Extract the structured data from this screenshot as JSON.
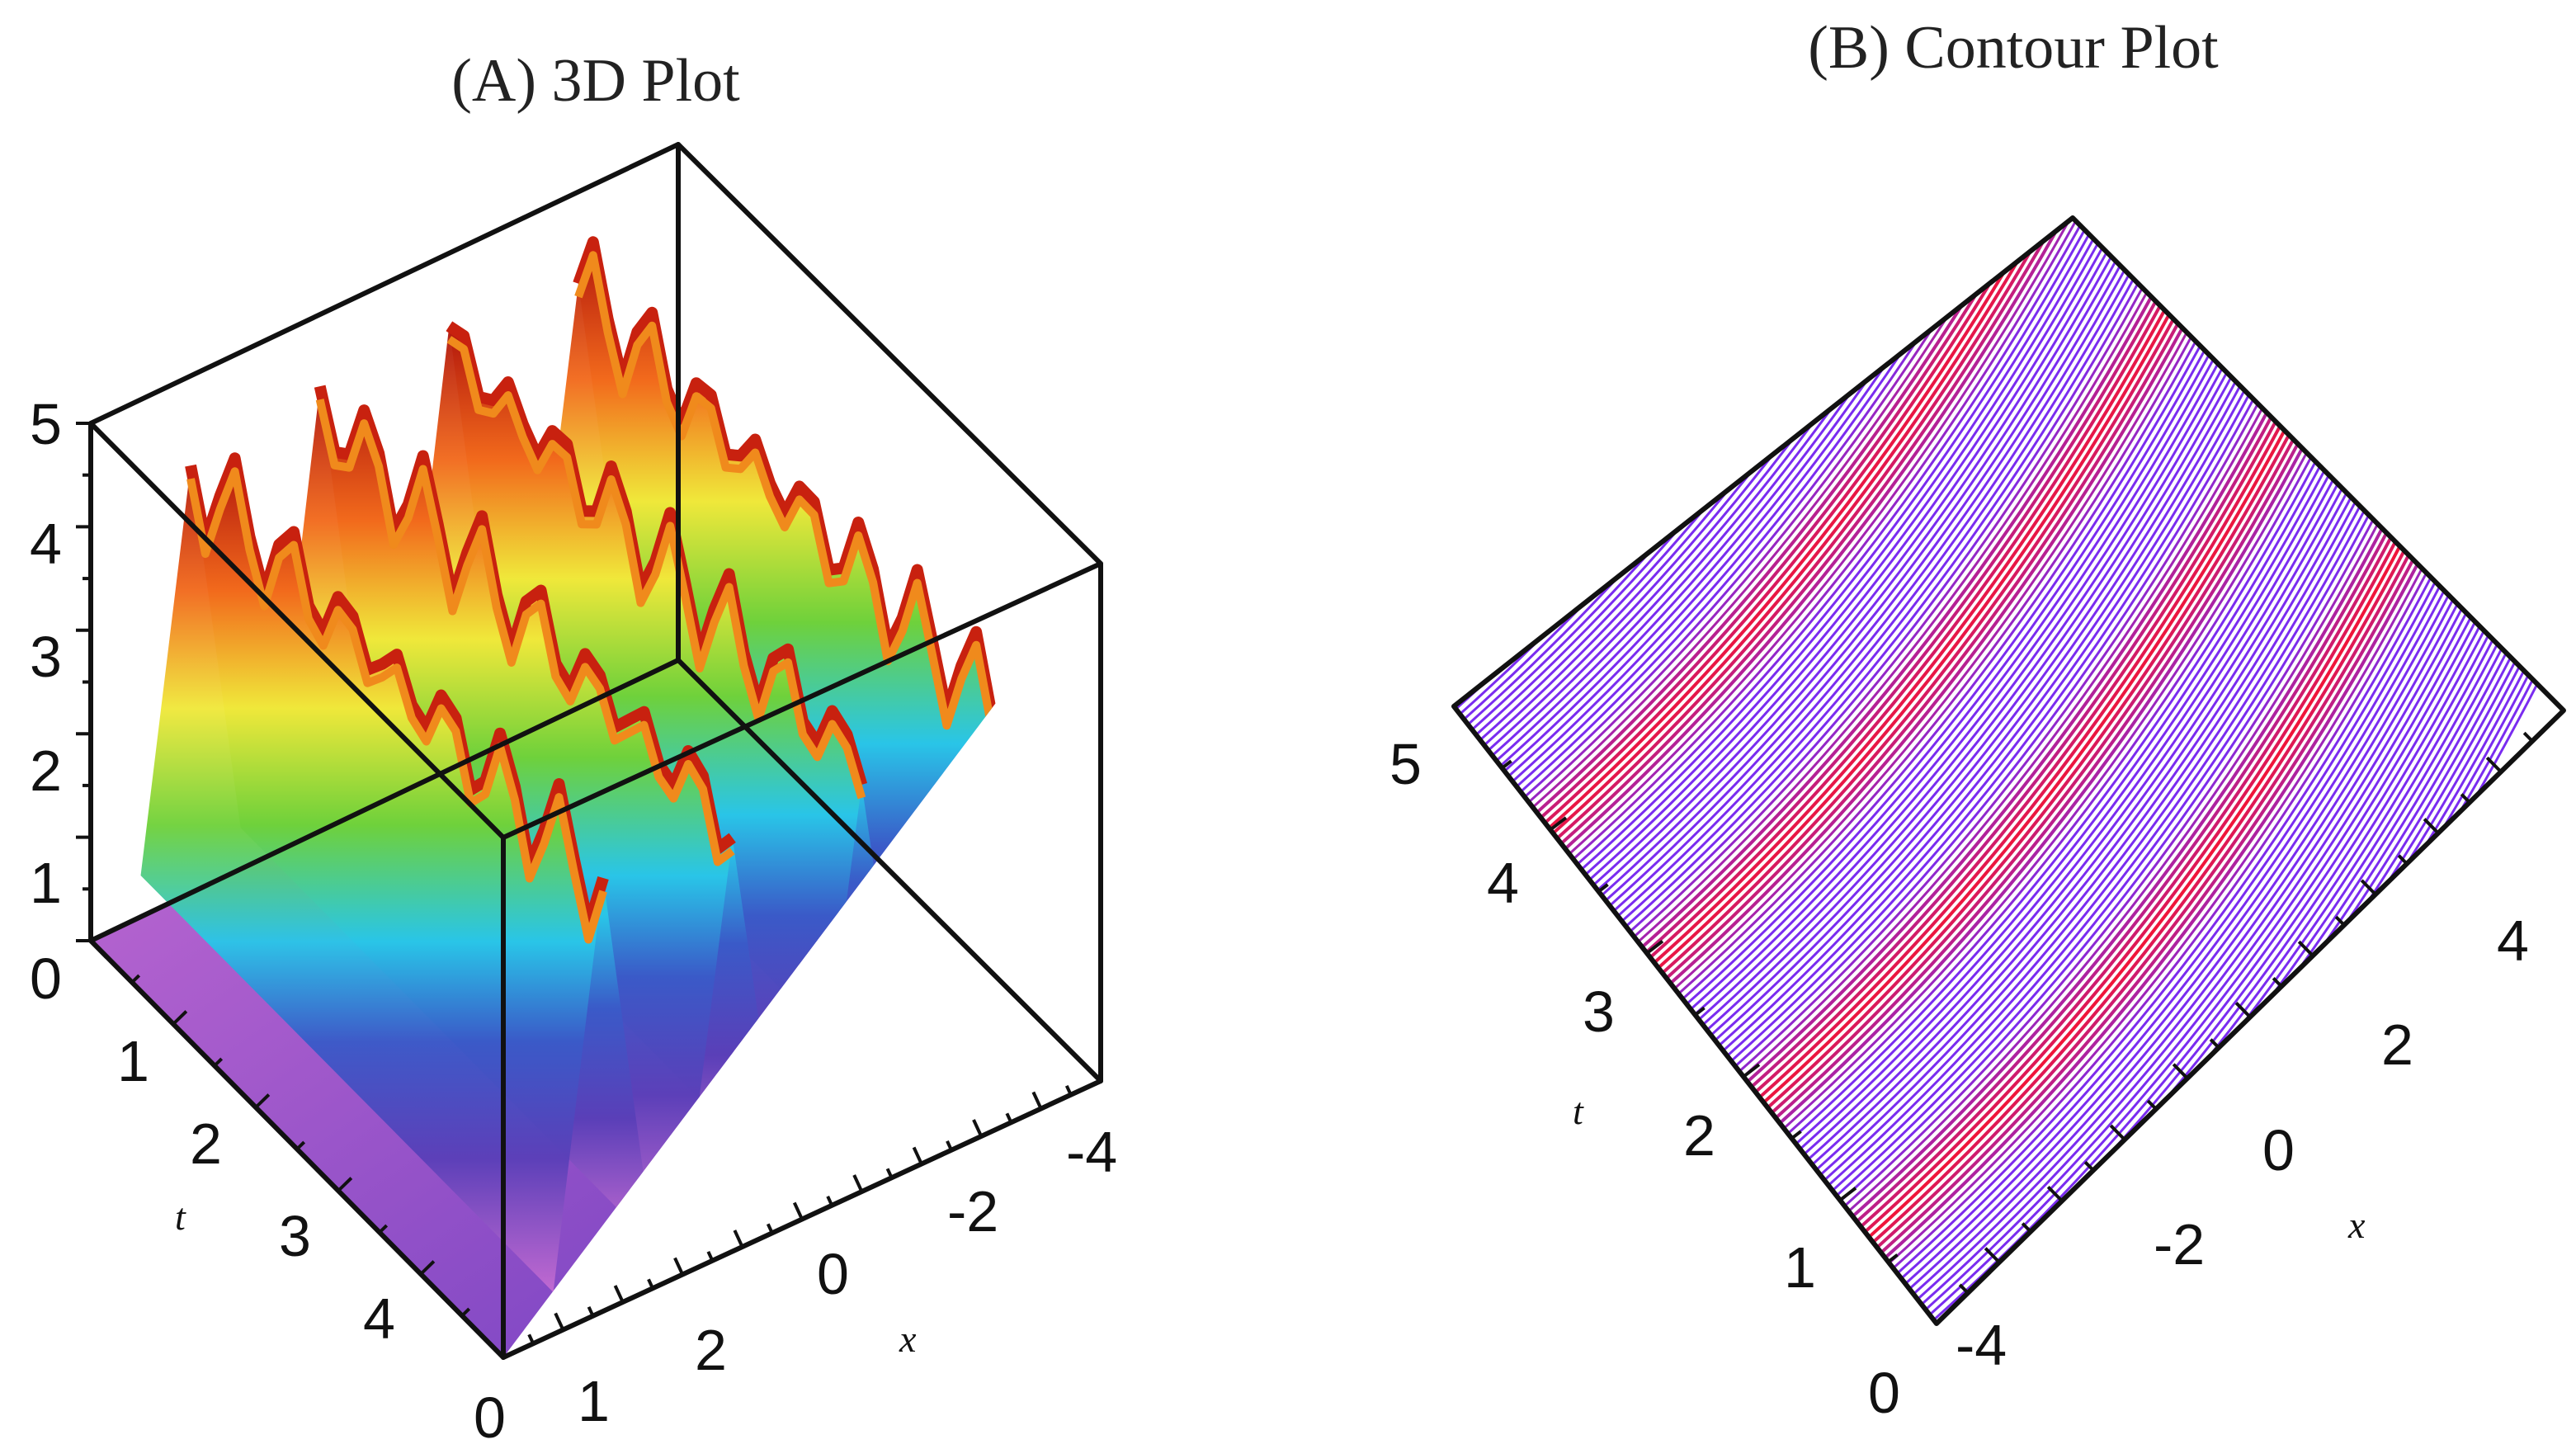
{
  "chart_data": [
    {
      "type": "surface",
      "title": "(A) 3D Plot",
      "xlabel": "x",
      "ylabel": "t",
      "xlim": [
        -5,
        5
      ],
      "tlim": [
        0,
        5
      ],
      "zlim": [
        0,
        5
      ],
      "x_ticks": [
        "-4",
        "-2",
        "0",
        "2"
      ],
      "t_ticks": [
        "1",
        "2",
        "3",
        "4"
      ],
      "z_ticks": [
        "0",
        "1",
        "2",
        "3",
        "4",
        "5"
      ],
      "origin_tick": "0",
      "corner_tick": "1",
      "ridges_x": [
        -3.3,
        -1.1,
        1.1,
        3.3
      ],
      "colormap": [
        "#b36ad8",
        "#3a48b0",
        "#29c6e8",
        "#7ad23a",
        "#f6e83a",
        "#f0791c",
        "#c01c10"
      ]
    },
    {
      "type": "contour",
      "title": "(B) Contour Plot",
      "xlabel": "x",
      "ylabel": "t",
      "xlim": [
        -5,
        5
      ],
      "tlim": [
        0,
        5
      ],
      "x_ticks": [
        "-4",
        "-2",
        "0",
        "2",
        "4"
      ],
      "t_ticks": [
        "0",
        "1",
        "2",
        "3",
        "4",
        "5"
      ],
      "band_positions": [
        0.14,
        0.36,
        0.58,
        0.8
      ],
      "colors": {
        "low": "#7a2cf0",
        "high": "#f0153a"
      }
    }
  ]
}
